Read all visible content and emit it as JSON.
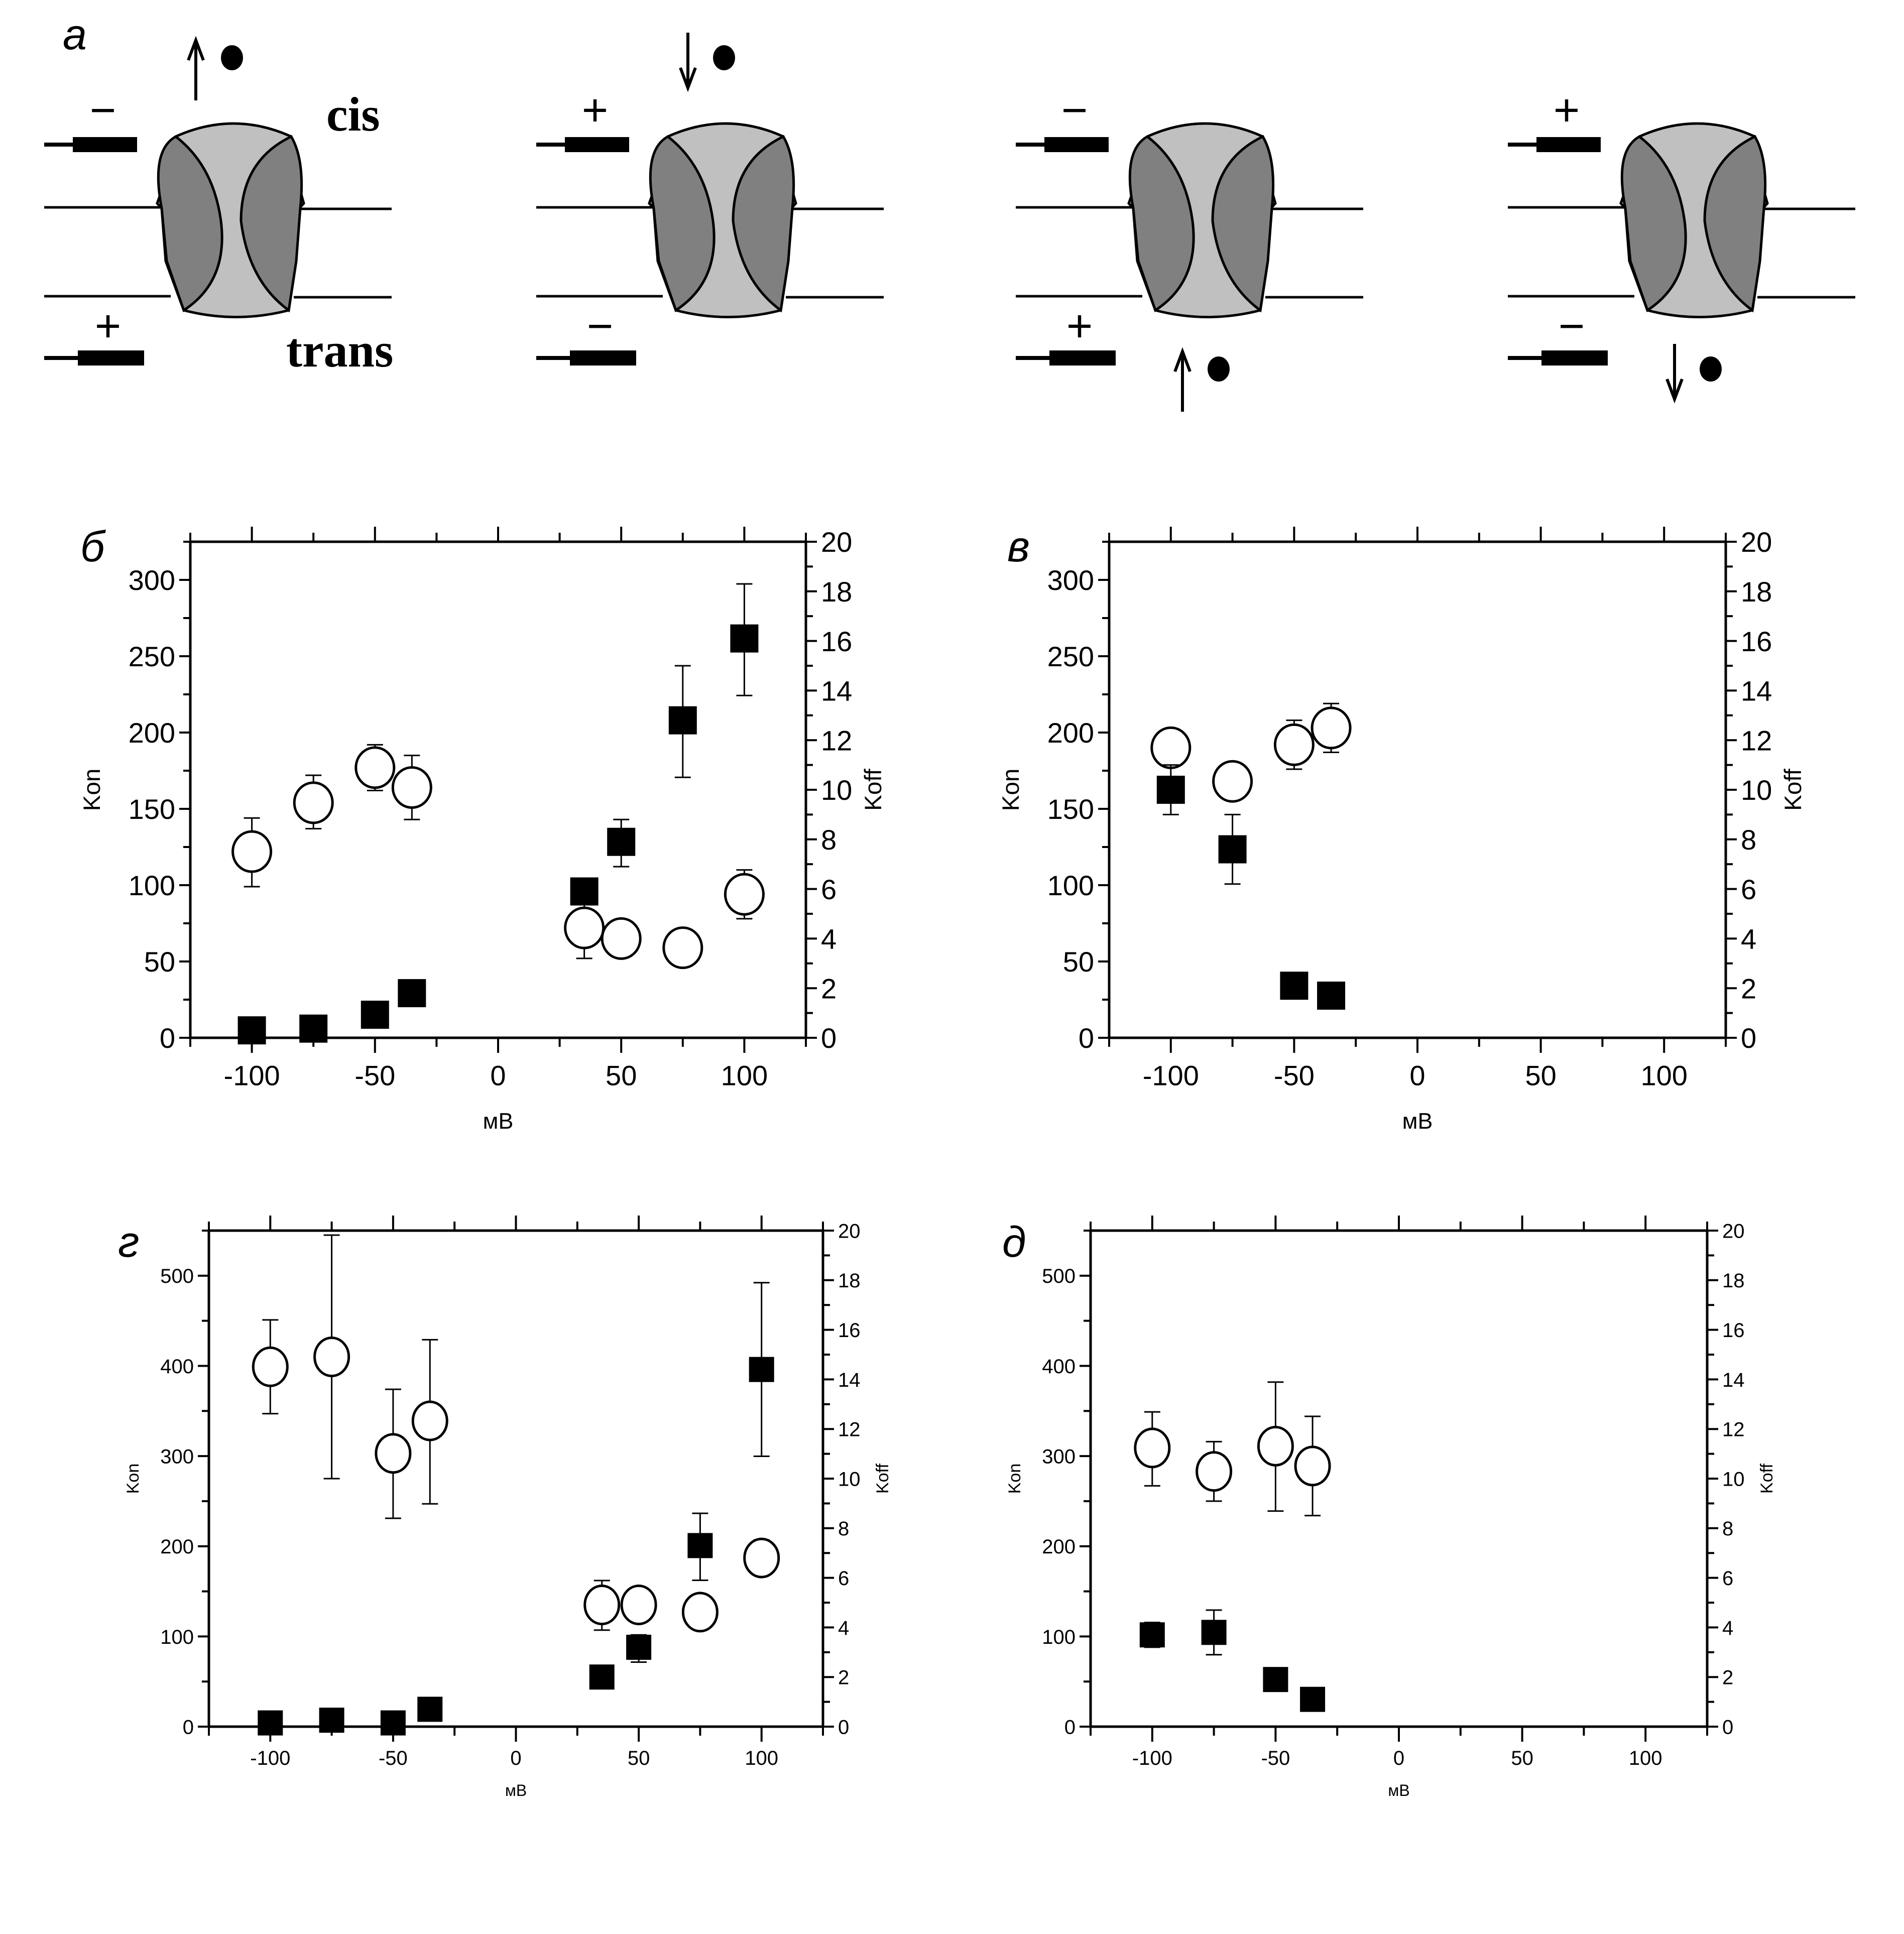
{
  "figure": {
    "panel_labels": {
      "a": "а",
      "b": "б",
      "v": "в",
      "g": "г",
      "d": "д"
    },
    "diagram": {
      "side_labels": {
        "cis": "cis",
        "trans": "trans"
      },
      "scenarios": [
        {
          "top_sign": "−",
          "bottom_sign": "+",
          "arrow": "up",
          "ion_side": "cis"
        },
        {
          "top_sign": "+",
          "bottom_sign": "−",
          "arrow": "down",
          "ion_side": "cis"
        },
        {
          "top_sign": "−",
          "bottom_sign": "+",
          "arrow": "up",
          "ion_side": "trans"
        },
        {
          "top_sign": "+",
          "bottom_sign": "−",
          "arrow": "down",
          "ion_side": "trans"
        }
      ],
      "colors": {
        "subunit": "#808080",
        "pore": "#c0c0c0",
        "outline": "#000000"
      }
    }
  },
  "chart_data": [
    {
      "id": "b",
      "panel": "б",
      "type": "scatter",
      "xlabel": "мВ",
      "ylabel_left": "Kon",
      "ylabel_right": "Koff",
      "xlim": [
        -125,
        125
      ],
      "ylim_left": [
        0,
        325
      ],
      "ylim_right": [
        0,
        20
      ],
      "xticks": [
        -100,
        -50,
        0,
        50,
        100
      ],
      "yticks_left": [
        0,
        50,
        100,
        150,
        200,
        250,
        300
      ],
      "yticks_right": [
        0,
        2,
        4,
        6,
        8,
        10,
        12,
        14,
        16,
        18,
        20
      ],
      "grid": false,
      "series": [
        {
          "name": "Kon",
          "marker": "open-circle",
          "axis": "left",
          "x": [
            -100,
            -75,
            -50,
            -35,
            35,
            50,
            75,
            100
          ],
          "y": [
            122,
            154,
            177,
            164,
            72,
            65,
            59,
            94
          ],
          "err_low": [
            99,
            137,
            162,
            143,
            52,
            62,
            54,
            78
          ],
          "err_high": [
            144,
            172,
            192,
            185,
            89,
            68,
            63,
            110
          ]
        },
        {
          "name": "Koff",
          "marker": "filled-square",
          "axis": "right",
          "x": [
            -100,
            -75,
            -50,
            -35,
            35,
            50,
            75,
            100
          ],
          "y": [
            0.3,
            0.37,
            0.93,
            1.8,
            5.9,
            7.9,
            12.8,
            16.1
          ],
          "err_low": [
            0.3,
            0.37,
            0.93,
            1.8,
            5.4,
            6.9,
            10.5,
            13.8
          ],
          "err_high": [
            0.3,
            0.37,
            0.93,
            1.8,
            6.3,
            8.8,
            15.0,
            18.3
          ]
        }
      ]
    },
    {
      "id": "v",
      "panel": "в",
      "type": "scatter",
      "xlabel": "мВ",
      "ylabel_left": "Kon",
      "ylabel_right": "Koff",
      "xlim": [
        -125,
        125
      ],
      "ylim_left": [
        0,
        325
      ],
      "ylim_right": [
        0,
        20
      ],
      "xticks": [
        -100,
        -50,
        0,
        50,
        100
      ],
      "yticks_left": [
        0,
        50,
        100,
        150,
        200,
        250,
        300
      ],
      "yticks_right": [
        0,
        2,
        4,
        6,
        8,
        10,
        12,
        14,
        16,
        18,
        20
      ],
      "grid": false,
      "series": [
        {
          "name": "Kon",
          "marker": "open-circle",
          "axis": "left",
          "x": [
            -100,
            -75,
            -50,
            -35
          ],
          "y": [
            190,
            168,
            192,
            203
          ],
          "err_low": [
            180,
            158,
            176,
            187
          ],
          "err_high": [
            200,
            177,
            208,
            219
          ]
        },
        {
          "name": "Koff",
          "marker": "filled-square",
          "axis": "right",
          "x": [
            -100,
            -75,
            -50,
            -35
          ],
          "y": [
            10.0,
            7.6,
            2.1,
            1.7
          ],
          "err_low": [
            9.0,
            6.2,
            2.1,
            1.7
          ],
          "err_high": [
            11.0,
            9.0,
            2.1,
            1.7
          ]
        }
      ]
    },
    {
      "id": "g",
      "panel": "г",
      "type": "scatter",
      "xlabel": "мВ",
      "ylabel_left": "Kon",
      "ylabel_right": "Koff",
      "xlim": [
        -125,
        125
      ],
      "ylim_left": [
        0,
        550
      ],
      "ylim_right": [
        0,
        20
      ],
      "xticks": [
        -100,
        -50,
        0,
        50,
        100
      ],
      "yticks_left": [
        0,
        100,
        200,
        300,
        400,
        500
      ],
      "yticks_right": [
        0,
        2,
        4,
        6,
        8,
        10,
        12,
        14,
        16,
        18,
        20
      ],
      "grid": false,
      "series": [
        {
          "name": "Kon",
          "marker": "open-circle",
          "axis": "left",
          "x": [
            -100,
            -75,
            -50,
            -35,
            35,
            50,
            75,
            100
          ],
          "y": [
            399,
            410,
            303,
            339,
            135,
            135,
            127,
            187
          ],
          "err_low": [
            347,
            275,
            231,
            247,
            107,
            118,
            113,
            168
          ],
          "err_high": [
            451,
            545,
            374,
            429,
            162,
            150,
            140,
            207
          ]
        },
        {
          "name": "Koff",
          "marker": "filled-square",
          "axis": "right",
          "x": [
            -100,
            -75,
            -50,
            -35,
            35,
            50,
            75,
            100
          ],
          "y": [
            0.15,
            0.26,
            0.15,
            0.7,
            2.0,
            3.2,
            7.3,
            14.4
          ],
          "err_low": [
            0.15,
            0.26,
            0.15,
            0.7,
            2.0,
            2.6,
            5.9,
            10.9
          ],
          "err_high": [
            0.15,
            0.26,
            0.15,
            0.7,
            2.0,
            3.7,
            8.6,
            17.9
          ]
        }
      ]
    },
    {
      "id": "d",
      "panel": "д",
      "type": "scatter",
      "xlabel": "мВ",
      "ylabel_left": "Kon",
      "ylabel_right": "Koff",
      "xlim": [
        -125,
        125
      ],
      "ylim_left": [
        0,
        550
      ],
      "ylim_right": [
        0,
        20
      ],
      "xticks": [
        -100,
        -50,
        0,
        50,
        100
      ],
      "yticks_left": [
        0,
        100,
        200,
        300,
        400,
        500
      ],
      "yticks_right": [
        0,
        2,
        4,
        6,
        8,
        10,
        12,
        14,
        16,
        18,
        20
      ],
      "grid": false,
      "series": [
        {
          "name": "Kon",
          "marker": "open-circle",
          "axis": "left",
          "x": [
            -100,
            -75,
            -50,
            -35
          ],
          "y": [
            309,
            283,
            311,
            289
          ],
          "err_low": [
            267,
            250,
            239,
            234
          ],
          "err_high": [
            349,
            316,
            382,
            344
          ]
        },
        {
          "name": "Koff",
          "marker": "filled-square",
          "axis": "right",
          "x": [
            -100,
            -75,
            -50,
            -35
          ],
          "y": [
            3.7,
            3.8,
            1.9,
            1.1
          ],
          "err_low": [
            3.2,
            2.9,
            1.8,
            1.1
          ],
          "err_high": [
            4.2,
            4.7,
            2.1,
            1.1
          ]
        }
      ]
    }
  ]
}
